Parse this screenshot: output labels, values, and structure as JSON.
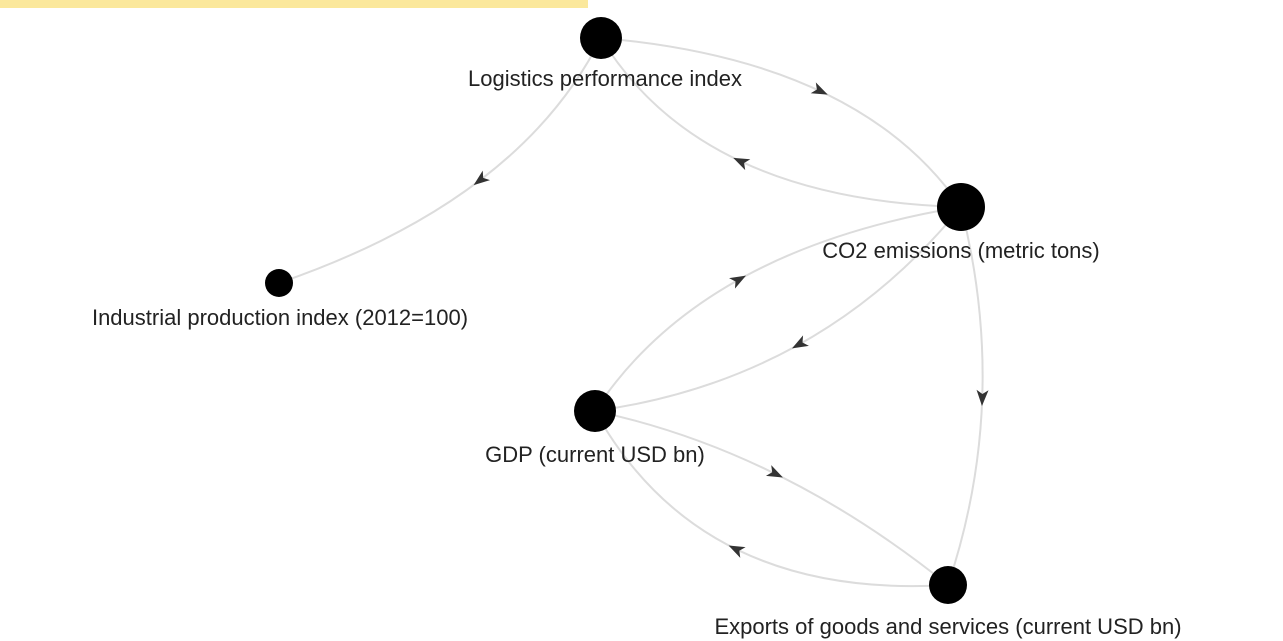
{
  "nodes": [
    {
      "label": "Logistics performance index"
    },
    {
      "label": "CO2 emissions (metric tons)"
    },
    {
      "label": "Industrial production index (2012=100)"
    },
    {
      "label": "GDP (current USD bn)"
    },
    {
      "label": "Exports of goods and services (current USD bn)"
    }
  ]
}
